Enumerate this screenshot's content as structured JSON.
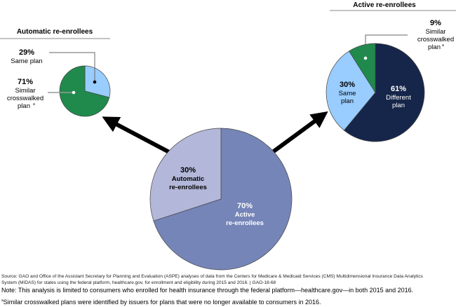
{
  "chart_data": [
    {
      "type": "pie",
      "name": "all-re-enrollees",
      "slices": [
        {
          "label": "Active re-enrollees",
          "value": 70,
          "pct_label": "70%",
          "color": "#7585b8"
        },
        {
          "label": "Automatic re-enrollees",
          "value": 30,
          "pct_label": "30%",
          "color": "#b3b7d9"
        }
      ],
      "label_lines": {
        "active": [
          "Active",
          "re-enrollees"
        ],
        "automatic": [
          "Automatic",
          "re-enrollees"
        ]
      }
    },
    {
      "type": "pie",
      "name": "automatic-breakdown",
      "title": "Automatic re-enrollees",
      "slices": [
        {
          "label": "Same plan",
          "value": 29,
          "pct_label": "29%",
          "color": "#99ccff"
        },
        {
          "label": "Similar crosswalked plan",
          "value": 71,
          "pct_label": "71%",
          "color": "#1f8a4c"
        }
      ],
      "label_lines": {
        "same": [
          "Same plan"
        ],
        "similar": [
          "Similar",
          "crosswalked",
          "plan"
        ]
      }
    },
    {
      "type": "pie",
      "name": "active-breakdown",
      "title": "Active re-enrollees",
      "slices": [
        {
          "label": "Different plan",
          "value": 61,
          "pct_label": "61%",
          "color": "#16264a"
        },
        {
          "label": "Same plan",
          "value": 30,
          "pct_label": "30%",
          "color": "#99ccff"
        },
        {
          "label": "Similar crosswalked plan",
          "value": 9,
          "pct_label": "9%",
          "color": "#1f8a4c"
        }
      ],
      "label_lines": {
        "different": [
          "Different",
          "plan"
        ],
        "same": [
          "Same",
          "plan"
        ],
        "similar": [
          "Similar",
          "crosswalked",
          "plan"
        ]
      }
    }
  ],
  "footnote_marker": "a",
  "source": [
    "Source: GAO and Office of the Assistant Secretary for Planning and Evaluation (ASPE) analyses of data from the Centers for Medicare & Medicaid Services (CMS) Multidimensional Insurance Data Analytics",
    "System (MIDAS) for states using the federal platform, healthcare.gov, for enrollment and eligibility during 2015 and 2016.  |  GAO-18-68"
  ],
  "note": "Note: This analysis is limited to consumers who enrolled for health insurance through the federal platform—healthcare.gov—in both 2015 and 2016.",
  "footnote": "Similar crosswalked plans were identified by issuers for plans that were no longer available to consumers in 2016."
}
